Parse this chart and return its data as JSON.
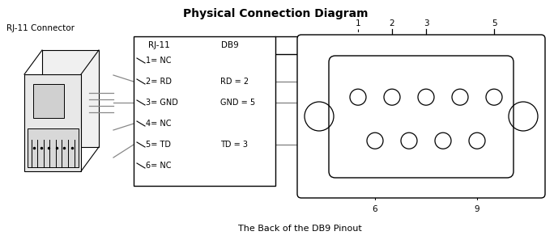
{
  "title": "Physical Connection Diagram",
  "title_fontsize": 10,
  "rj11_label": "RJ-11 Connector",
  "rj11_col_label": "RJ-11",
  "db9_col_label": "DB9",
  "rj11_pins": [
    "1= NC",
    "2= RD",
    "3= GND",
    "4= NC",
    "5= TD",
    "6= NC"
  ],
  "db9_connections": {
    "1": "RD = 2",
    "2": "GND = 5",
    "4": "TD = 3"
  },
  "bottom_label": "The Back of the DB9 Pinout",
  "bg_color": "#ffffff",
  "line_color": "#000000",
  "wire_color": "#888888",
  "font_size": 7.5,
  "small_font": 6.5
}
